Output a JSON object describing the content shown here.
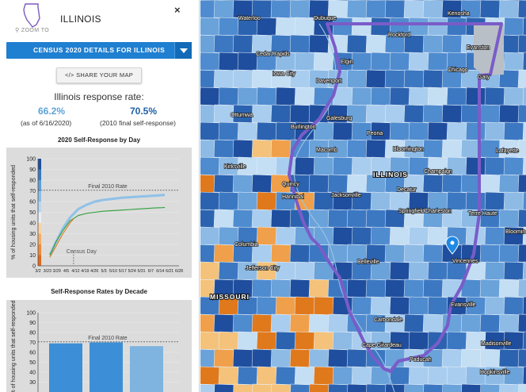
{
  "panel": {
    "state_name": "ILLINOIS",
    "zoom_label": "ZOOM TO",
    "close_icon": "×",
    "dropdown_label": "CENSUS 2020 DETAILS FOR ILLINOIS",
    "share_label": "</> SHARE YOUR MAP",
    "response_title": "Illinois response rate:",
    "rate_2020": "66.2%",
    "rate_2020_note": "(as of 6/16/2020)",
    "rate_2010": "70.5%",
    "rate_2010_note": "(2010 final self-response)",
    "colors": {
      "accent": "#1f7fd1",
      "rate2020": "#5aa3d8",
      "rate2010": "#1f5fa6"
    }
  },
  "chart_data": [
    {
      "type": "line",
      "title": "2020 Self-Response by Day",
      "ylabel": "% of housing units that self-responded",
      "ylim": [
        0,
        100
      ],
      "yticks": [
        0,
        10,
        20,
        30,
        40,
        50,
        60,
        70,
        80,
        90,
        100
      ],
      "xticks": [
        "3/2",
        "3/23",
        "3/29",
        "4/5",
        "4/12",
        "4/19",
        "4/26",
        "5/3",
        "5/10",
        "5/17",
        "5/24",
        "5/31",
        "6/7",
        "6/14",
        "6/21",
        "6/28"
      ],
      "reference_line": {
        "label": "Final 2010 Rate",
        "value": 70.5
      },
      "annotation": {
        "label": "Census Day",
        "x": "4/1"
      },
      "series": [
        {
          "color": "#8fc1e8",
          "x": [
            "3/12",
            "3/17",
            "3/23",
            "3/29",
            "4/5",
            "4/12",
            "4/19",
            "4/26",
            "5/3",
            "5/10",
            "5/17",
            "5/24",
            "5/31",
            "6/7",
            "6/14",
            "6/16"
          ],
          "values": [
            10,
            22,
            35,
            45,
            53,
            57,
            60,
            61.5,
            62.5,
            63.5,
            64,
            64.5,
            65,
            65.5,
            66,
            66.2
          ]
        },
        {
          "color": "#2e9e3a",
          "x": [
            "3/12",
            "3/17",
            "3/23",
            "3/29",
            "4/5",
            "4/12",
            "4/19",
            "4/26",
            "5/3",
            "5/10",
            "5/17",
            "5/24",
            "5/31",
            "6/7",
            "6/14",
            "6/16"
          ],
          "values": [
            10,
            22,
            33,
            42,
            47,
            49,
            50,
            51,
            51.5,
            52,
            52.5,
            53,
            53.5,
            54,
            54.3,
            54.5
          ]
        },
        {
          "color": "#e07b22",
          "x": [
            "3/12",
            "3/17",
            "3/23",
            "3/29",
            "4/1"
          ],
          "values": [
            8,
            18,
            30,
            40,
            44
          ]
        }
      ]
    },
    {
      "type": "bar",
      "title": "Self-Response Rates by Decade",
      "ylabel": "% of housing units that self-responded",
      "ylim": [
        0,
        100
      ],
      "yticks": [
        30,
        40,
        50,
        60,
        70,
        80,
        90,
        100
      ],
      "reference_line": {
        "label": "Final 2010 Rate",
        "value": 70.5
      },
      "values": [
        69,
        70,
        66.2
      ],
      "colors": [
        "#3c8fd6",
        "#3c8fd6",
        "#7fb3e0"
      ]
    }
  ],
  "map": {
    "state_label_il": "ILLINOIS",
    "state_label_mo": "MISSOURI",
    "marker_icon": "map-pin-icon",
    "cities": [
      "Waterloo",
      "Dubuque",
      "Kenosha",
      "Rockford",
      "Evanston",
      "Cedar Rapids",
      "Elgin",
      "Chicago",
      "Gary",
      "Iowa City",
      "Davenport",
      "Ottumwa",
      "Galesburg",
      "Burlington",
      "Peoria",
      "Macomb",
      "Bloomington",
      "Lafayette",
      "Kirksville",
      "Quincy",
      "Champaign",
      "Hannibal",
      "Decatur",
      "Jacksonville",
      "Springfield",
      "Charleston",
      "Terre Haute",
      "Columbia",
      "Bloomin",
      "Jefferson City",
      "Belleville",
      "Vincennes",
      "Evansville",
      "Carbondale",
      "Cape Girardeau",
      "Paducah",
      "Madisonville",
      "Hopkinsville"
    ]
  }
}
